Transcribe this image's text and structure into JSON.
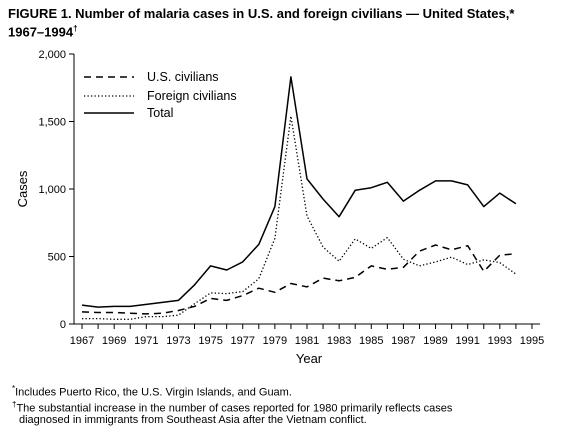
{
  "title": {
    "text": "FIGURE 1. Number of malaria cases in U.S. and foreign civilians — United States,*",
    "line2": "1967–1994",
    "mark": "†"
  },
  "chart_data": {
    "type": "line",
    "xlabel": "Year",
    "ylabel": "Cases",
    "xlim": [
      1966.5,
      1995.5
    ],
    "ylim": [
      0,
      2000
    ],
    "x_ticks": [
      1967,
      1969,
      1971,
      1973,
      1975,
      1977,
      1979,
      1981,
      1983,
      1985,
      1987,
      1989,
      1991,
      1993,
      1995
    ],
    "y_ticks": [
      0,
      500,
      1000,
      1500,
      2000
    ],
    "y_tick_labels": [
      "0",
      "500",
      "1,000",
      "1,500",
      "2,000"
    ],
    "legend_position": "top-left",
    "x": [
      1967,
      1968,
      1969,
      1970,
      1971,
      1972,
      1973,
      1974,
      1975,
      1976,
      1977,
      1978,
      1979,
      1980,
      1981,
      1982,
      1983,
      1984,
      1985,
      1986,
      1987,
      1988,
      1989,
      1990,
      1991,
      1992,
      1993,
      1994
    ],
    "series": [
      {
        "name": "U.S. civilians",
        "style": "dashed",
        "values": [
          90,
          85,
          85,
          80,
          75,
          80,
          100,
          130,
          190,
          175,
          210,
          265,
          235,
          300,
          275,
          340,
          320,
          345,
          430,
          405,
          420,
          540,
          585,
          550,
          580,
          390,
          510,
          520
        ]
      },
      {
        "name": "Foreign civilians",
        "style": "dotted",
        "values": [
          40,
          40,
          35,
          35,
          55,
          55,
          65,
          150,
          230,
          225,
          240,
          335,
          635,
          1540,
          800,
          570,
          465,
          630,
          560,
          640,
          480,
          430,
          460,
          495,
          440,
          475,
          455,
          370
        ]
      },
      {
        "name": "Total",
        "style": "solid",
        "values": [
          140,
          125,
          130,
          130,
          145,
          160,
          175,
          290,
          430,
          400,
          460,
          590,
          870,
          1830,
          1075,
          925,
          795,
          990,
          1010,
          1050,
          910,
          990,
          1060,
          1060,
          1030,
          870,
          970,
          890
        ]
      }
    ]
  },
  "footnotes": [
    {
      "mark": "*",
      "text": "Includes Puerto Rico, the U.S. Virgin Islands, and Guam."
    },
    {
      "mark": "†",
      "text": "The substantial increase in the number of cases reported for 1980 primarily reflects cases",
      "line2": "diagnosed in immigrants from Southeast Asia after the Vietnam conflict."
    }
  ]
}
